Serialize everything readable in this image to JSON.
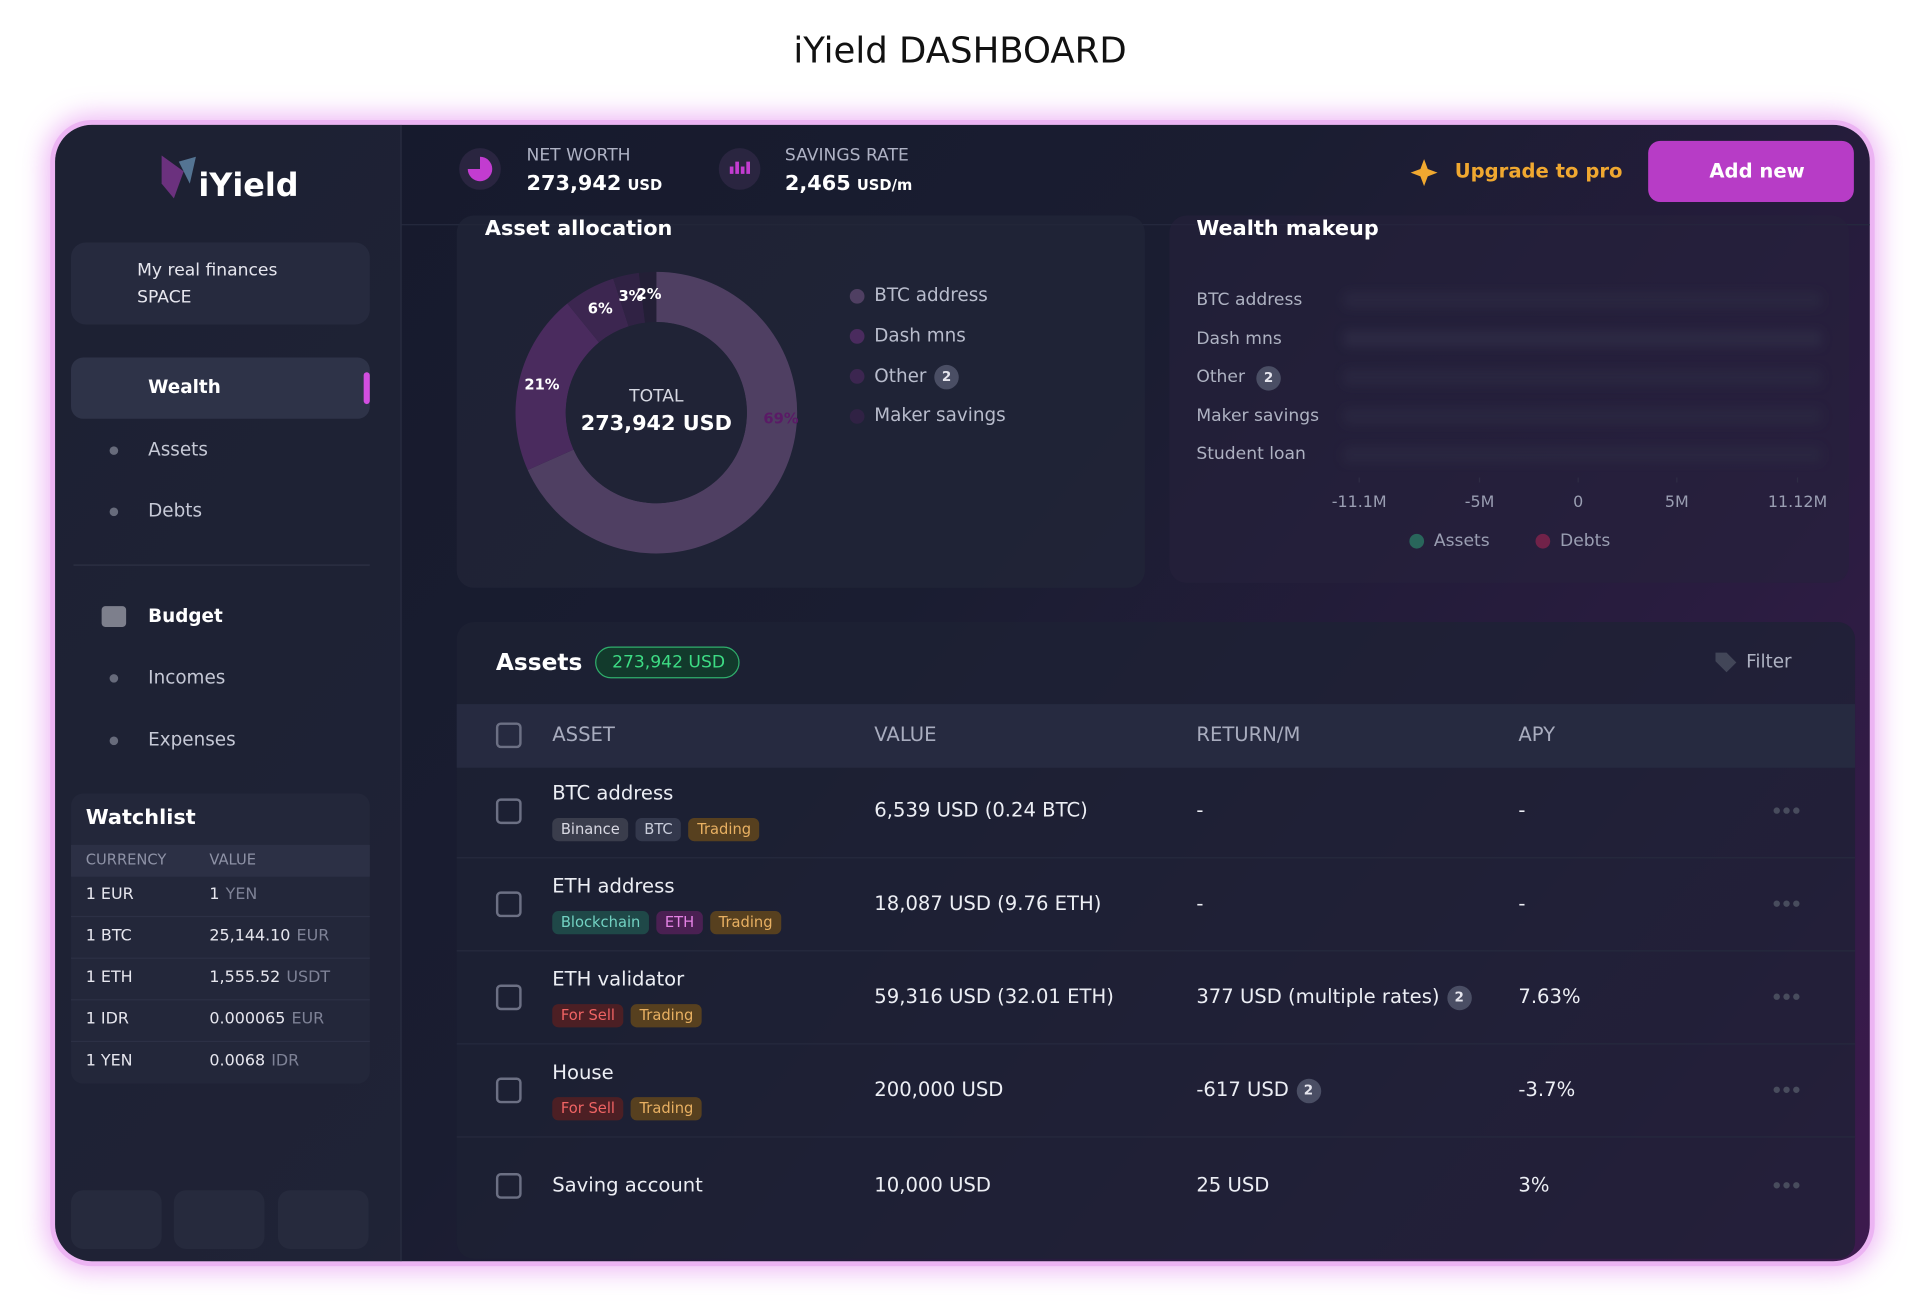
{
  "page": {
    "title": "iYield DASHBOARD"
  },
  "sidebar": {
    "logo": "iYield",
    "space": {
      "name": "My real finances",
      "type": "SPACE"
    },
    "nav": [
      {
        "label": "Wealth",
        "children": [
          "Assets",
          "Debts"
        ]
      },
      {
        "label": "Budget",
        "children": [
          "Incomes",
          "Expenses"
        ]
      }
    ],
    "watchlist": {
      "title": "Watchlist",
      "columns": [
        "CURRENCY",
        "VALUE"
      ],
      "rows": [
        [
          "1 EUR",
          "1",
          "YEN"
        ],
        [
          "1 BTC",
          "25,144.10",
          "EUR"
        ],
        [
          "1 ETH",
          "1,555.52",
          "USDT"
        ],
        [
          "1 IDR",
          "0.000065",
          "EUR"
        ],
        [
          "1 YEN",
          "0.0068",
          "IDR"
        ]
      ]
    }
  },
  "header": {
    "stats": [
      {
        "label": "NET WORTH",
        "value": "273,942",
        "unit": "USD"
      },
      {
        "label": "SAVINGS RATE",
        "value": "2,465",
        "unit": "USD/m"
      }
    ],
    "upgrade": "Upgrade to pro",
    "add": "Add new"
  },
  "allocation": {
    "title": "Asset allocation",
    "total_label": "TOTAL",
    "total": "273,942 USD",
    "values": [
      69,
      21,
      6,
      3,
      2
    ],
    "value_labels": [
      "69%",
      "21%",
      "6%",
      "3%",
      "2%"
    ],
    "colors": [
      "#d88ce0",
      "#c23cd0",
      "#8c2a98",
      "#5c1a68",
      "#2a0c32"
    ],
    "legend": [
      {
        "name": "BTC address"
      },
      {
        "name": "Dash mns"
      },
      {
        "name": "Other",
        "badge": "2"
      },
      {
        "name": "Maker savings"
      }
    ]
  },
  "wealth": {
    "title": "Wealth makeup",
    "rows": [
      {
        "name": "BTC address"
      },
      {
        "name": "Dash mns"
      },
      {
        "name": "Other",
        "badge": "2"
      },
      {
        "name": "Maker savings"
      },
      {
        "name": "Student loan"
      }
    ],
    "xlim": [
      -11100000,
      11120000
    ],
    "xticks": [
      {
        "value": -11100000,
        "label": "-11.1M"
      },
      {
        "value": -5000000,
        "label": "-5M"
      },
      0,
      {
        "value": 5000000,
        "label": "5M"
      },
      {
        "value": 11120000,
        "label": "11.12M"
      }
    ],
    "legend": [
      {
        "name": "Assets",
        "color": "#2ecc8a"
      },
      {
        "name": "Debts",
        "color": "#e0245e"
      }
    ]
  },
  "assets": {
    "title": "Assets",
    "total": "273,942 USD",
    "filter": "Filter",
    "columns": [
      "ASSET",
      "VALUE",
      "RETURN/M",
      "APY"
    ],
    "rows": [
      {
        "name": "BTC address",
        "tags": [
          {
            "text": "Binance",
            "bg": "#3a3d4c",
            "fg": "#d8d8e2"
          },
          {
            "text": "BTC",
            "bg": "#33384c",
            "fg": "#c8ccda"
          },
          {
            "text": "Trading",
            "bg": "#57401f",
            "fg": "#e8b062"
          }
        ],
        "value": "6,539 USD (0.24 BTC)",
        "return": "-",
        "apy": "-"
      },
      {
        "name": "ETH address",
        "tags": [
          {
            "text": "Blockchain",
            "bg": "#1f4848",
            "fg": "#72d2c2"
          },
          {
            "text": "ETH",
            "bg": "#4a2052",
            "fg": "#e482e4"
          },
          {
            "text": "Trading",
            "bg": "#57401f",
            "fg": "#e8b062"
          }
        ],
        "value": "18,087 USD (9.76 ETH)",
        "return": "-",
        "apy": "-"
      },
      {
        "name": "ETH validator",
        "tags": [
          {
            "text": "For Sell",
            "bg": "#4c1f24",
            "fg": "#f06464"
          },
          {
            "text": "Trading",
            "bg": "#57401f",
            "fg": "#e8b062"
          }
        ],
        "value": "59,316 USD (32.01 ETH)",
        "return": "377 USD (multiple rates)",
        "return_badge": "2",
        "apy": "7.63%"
      },
      {
        "name": "House",
        "tags": [
          {
            "text": "For Sell",
            "bg": "#4c1f24",
            "fg": "#f06464"
          },
          {
            "text": "Trading",
            "bg": "#57401f",
            "fg": "#e8b062"
          }
        ],
        "value": "200,000 USD",
        "return": "-617 USD",
        "return_badge": "2",
        "apy": "-3.7%"
      },
      {
        "name": "Saving account",
        "tags": [],
        "value": "10,000 USD",
        "return": "25 USD",
        "apy": "3%"
      }
    ]
  }
}
